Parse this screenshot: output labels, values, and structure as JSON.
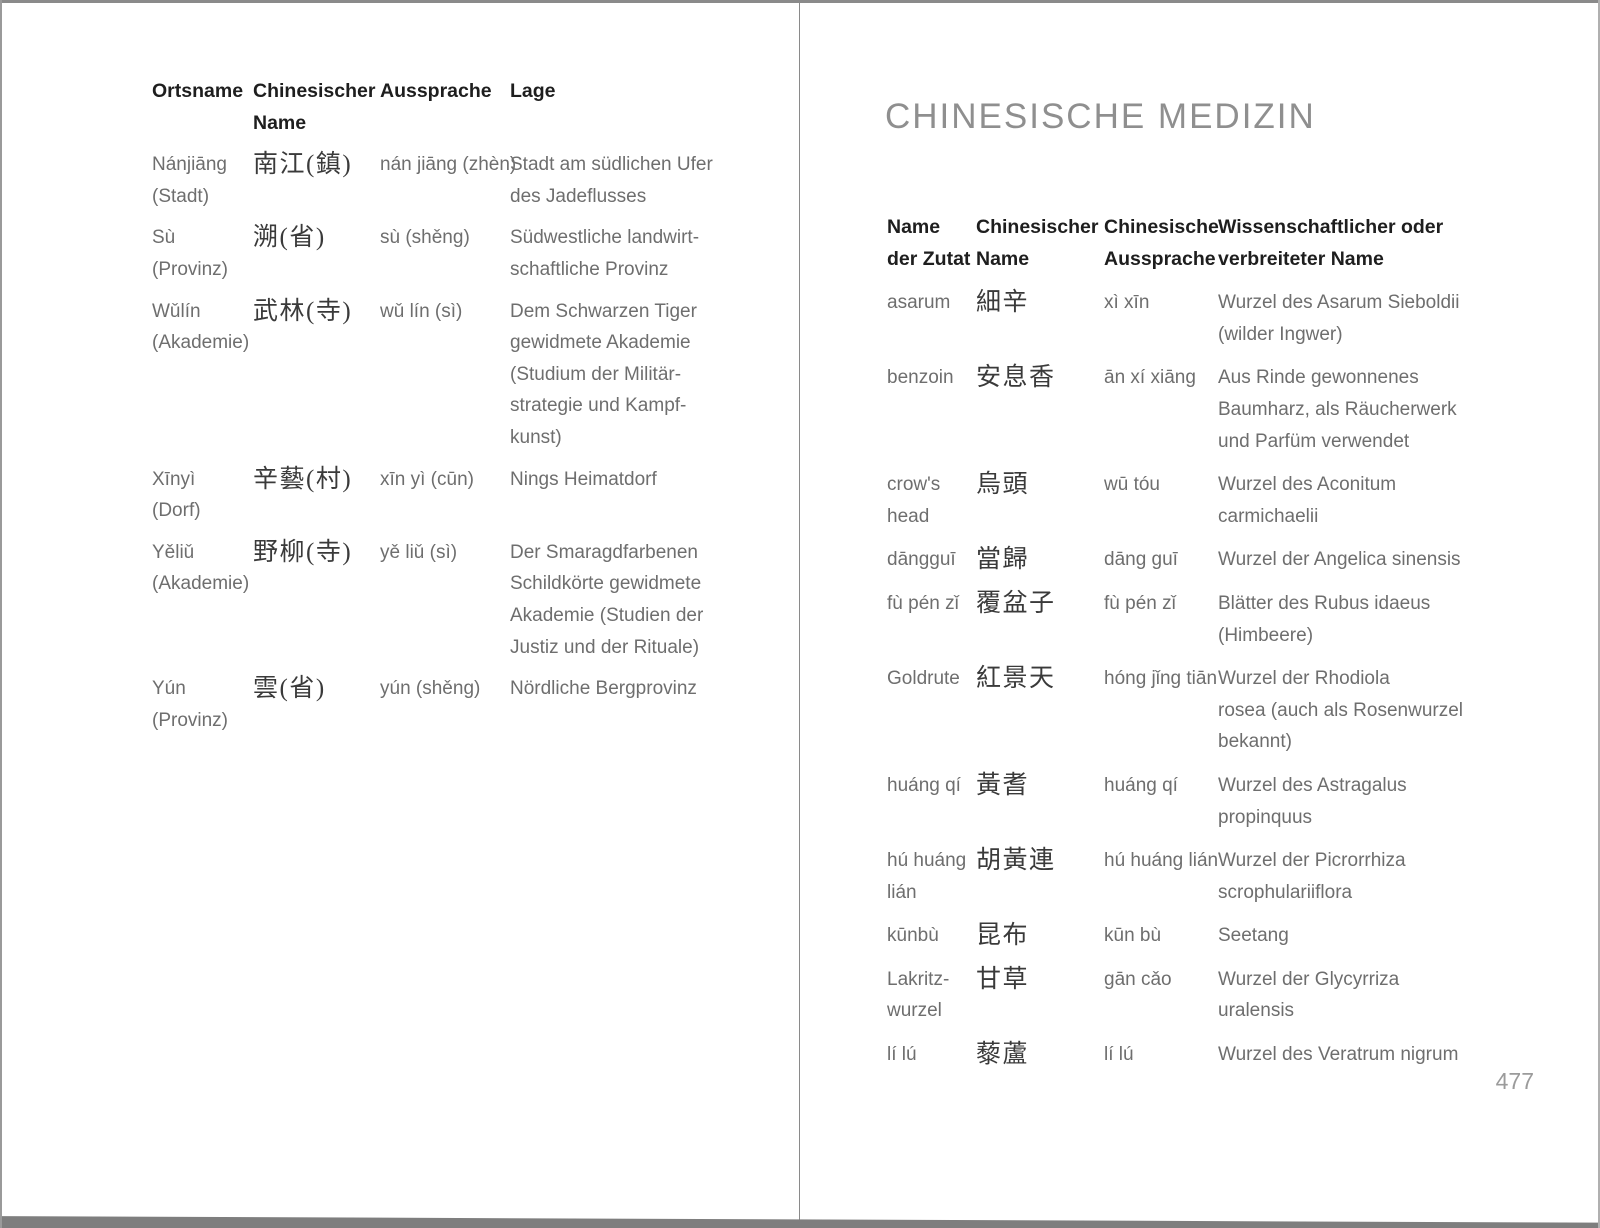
{
  "left_page": {
    "table": {
      "headers": [
        [
          "Ortsname"
        ],
        [
          "Chinesischer",
          "Name"
        ],
        [
          "Aussprache"
        ],
        [
          "Lage"
        ]
      ],
      "rows": [
        {
          "name": [
            "Nánjiāng",
            "(Stadt)"
          ],
          "chinese": "南江(鎮)",
          "pinyin": [
            "nán jiāng (zhèn)"
          ],
          "desc": [
            "Stadt am südlichen Ufer",
            "des Jadeflusses"
          ]
        },
        {
          "name": [
            "Sù",
            "(Provinz)"
          ],
          "chinese": "溯(省)",
          "pinyin": [
            "sù (shěng)"
          ],
          "desc": [
            "Südwestliche landwirt-",
            "schaftliche Provinz"
          ]
        },
        {
          "name": [
            "Wǔlín",
            "(Akademie)"
          ],
          "chinese": "武林(寺)",
          "pinyin": [
            "wǔ lín (sì)"
          ],
          "desc": [
            "Dem Schwarzen Tiger",
            "gewidmete Akademie",
            "(Studium der Militär-",
            "strategie und Kampf-",
            "kunst)"
          ]
        },
        {
          "name": [
            "Xīnyì",
            "(Dorf)"
          ],
          "chinese": "辛藝(村)",
          "pinyin": [
            "xīn yì (cūn)"
          ],
          "desc": [
            "Nings Heimatdorf"
          ]
        },
        {
          "name": [
            "Yěliǔ",
            "(Akademie)"
          ],
          "chinese": "野柳(寺)",
          "pinyin": [
            "yě liǔ (sì)"
          ],
          "desc": [
            "Der Smaragdfarbenen",
            "Schildkörte gewidmete",
            "Akademie (Studien der",
            "Justiz und der Rituale)"
          ]
        },
        {
          "name": [
            "Yún",
            "(Provinz)"
          ],
          "chinese": "雲(省)",
          "pinyin": [
            "yún (shěng)"
          ],
          "desc": [
            "Nördliche Bergprovinz"
          ]
        }
      ]
    }
  },
  "right_page": {
    "title": "CHINESISCHE MEDIZIN",
    "page_number": "477",
    "table": {
      "headers": [
        [
          "Name",
          "der Zutat"
        ],
        [
          "Chinesischer",
          "Name"
        ],
        [
          "Chinesische",
          "Aussprache"
        ],
        [
          "Wissenschaftlicher oder",
          "verbreiteter Name"
        ]
      ],
      "rows": [
        {
          "name": [
            "asarum"
          ],
          "chinese": "細辛",
          "pinyin": [
            "xì xīn"
          ],
          "desc": [
            "Wurzel des Asarum Sieboldii",
            "(wilder Ingwer)"
          ]
        },
        {
          "name": [
            "benzoin"
          ],
          "chinese": "安息香",
          "pinyin": [
            "ān xí xiāng"
          ],
          "desc": [
            "Aus Rinde gewonnenes",
            "Baumharz, als Räucherwerk",
            "und Parfüm verwendet"
          ]
        },
        {
          "name": [
            "crow's",
            "head"
          ],
          "chinese": "烏頭",
          "pinyin": [
            "wū tóu"
          ],
          "desc": [
            "Wurzel des Aconitum",
            "carmichaelii"
          ]
        },
        {
          "name": [
            "dāngguī"
          ],
          "chinese": "當歸",
          "pinyin": [
            "dāng guī"
          ],
          "desc": [
            "Wurzel der Angelica sinensis"
          ]
        },
        {
          "name": [
            "fù pén zǐ"
          ],
          "chinese": "覆盆子",
          "pinyin": [
            "fù pén zǐ"
          ],
          "desc": [
            "Blätter des Rubus idaeus",
            "(Himbeere)"
          ]
        },
        {
          "name": [
            "Goldrute"
          ],
          "chinese": "紅景天",
          "pinyin": [
            "hóng jǐng tiān"
          ],
          "desc": [
            "Wurzel der Rhodiola",
            "rosea (auch als Rosenwurzel",
            "bekannt)"
          ]
        },
        {
          "name": [
            "huáng qí"
          ],
          "chinese": "黃耆",
          "pinyin": [
            "huáng qí"
          ],
          "desc": [
            "Wurzel des Astragalus",
            "propinquus"
          ]
        },
        {
          "name": [
            "hú huáng",
            "lián"
          ],
          "chinese": "胡黃連",
          "pinyin": [
            "hú huáng lián"
          ],
          "desc": [
            "Wurzel der Picrorrhiza",
            "scrophulariiflora"
          ]
        },
        {
          "name": [
            "kūnbù"
          ],
          "chinese": "昆布",
          "pinyin": [
            "kūn bù"
          ],
          "desc": [
            "Seetang"
          ]
        },
        {
          "name": [
            "Lakritz-",
            "wurzel"
          ],
          "chinese": "甘草",
          "pinyin": [
            "gān cǎo"
          ],
          "desc": [
            "Wurzel der Glycyrriza",
            "uralensis"
          ]
        },
        {
          "name": [
            "lí lú"
          ],
          "chinese": "藜蘆",
          "pinyin": [
            "lí lú"
          ],
          "desc": [
            "Wurzel des Veratrum nigrum"
          ]
        }
      ]
    }
  }
}
